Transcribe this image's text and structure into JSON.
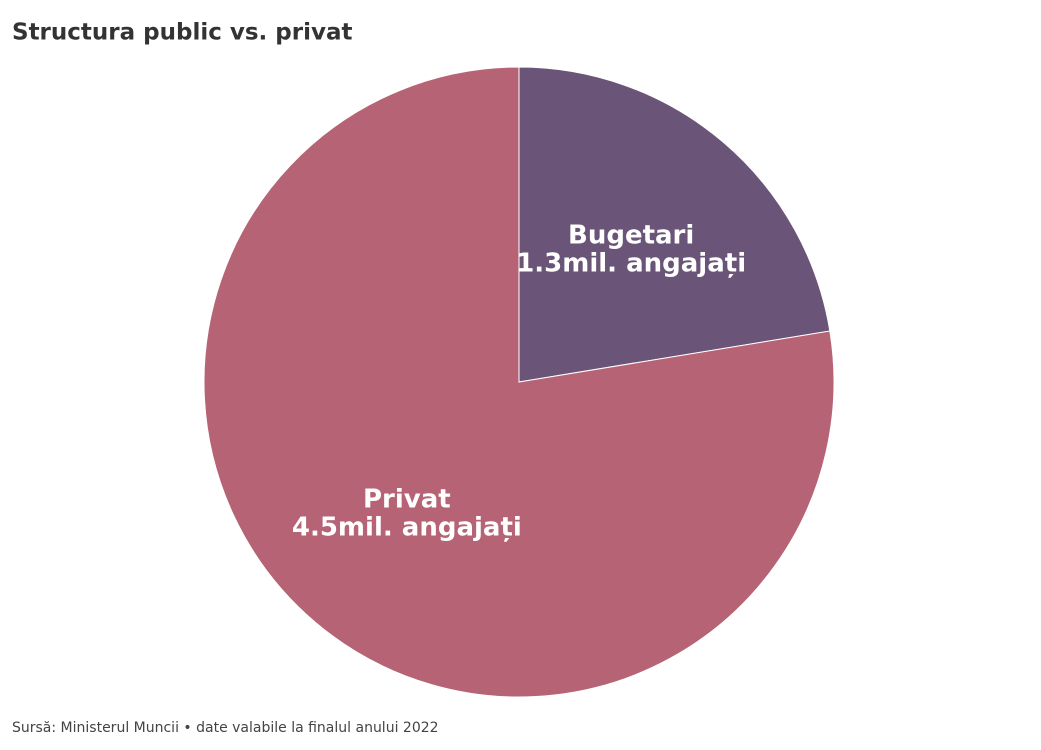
{
  "chart_data": {
    "type": "pie",
    "title": "Structura public vs. privat",
    "categories": [
      "Bugetari",
      "Privat"
    ],
    "values": [
      1.3,
      4.5
    ],
    "value_labels": [
      "1.3mil. angajați",
      "4.5mil. angajați"
    ],
    "colors": [
      "#6a5478",
      "#b56375"
    ],
    "source": "Sursă: Ministerul Muncii • date valabile la finalul anului 2022"
  }
}
